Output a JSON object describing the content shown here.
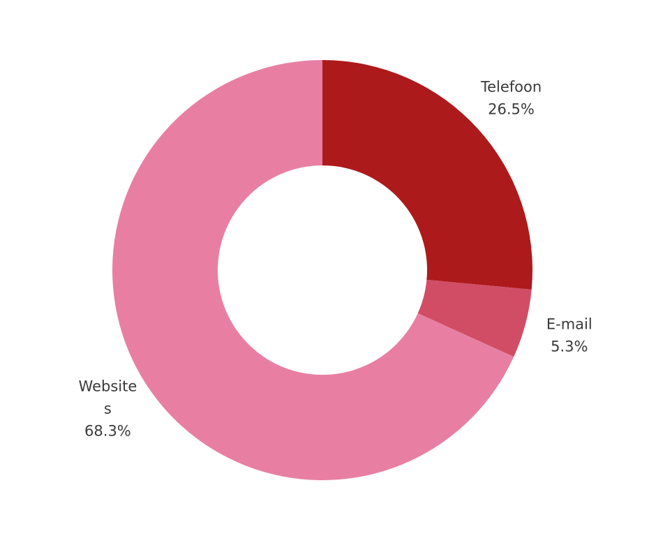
{
  "chart_data": {
    "type": "pie",
    "donut": true,
    "title": "",
    "slices": [
      {
        "name": "Telefoon",
        "label_lines": [
          "Telefoon"
        ],
        "value": 26.5,
        "value_label": "26.5%",
        "color": "#ad1a1c"
      },
      {
        "name": "E-mail",
        "label_lines": [
          "E-mail"
        ],
        "value": 5.3,
        "value_label": "5.3%",
        "color": "#d14d65"
      },
      {
        "name": "Websites",
        "label_lines": [
          "Website",
          "s"
        ],
        "value": 68.3,
        "value_label": "68.3%",
        "color": "#e87fa3"
      }
    ],
    "start_angle_deg": 0,
    "direction": "clockwise",
    "legend": "none"
  }
}
